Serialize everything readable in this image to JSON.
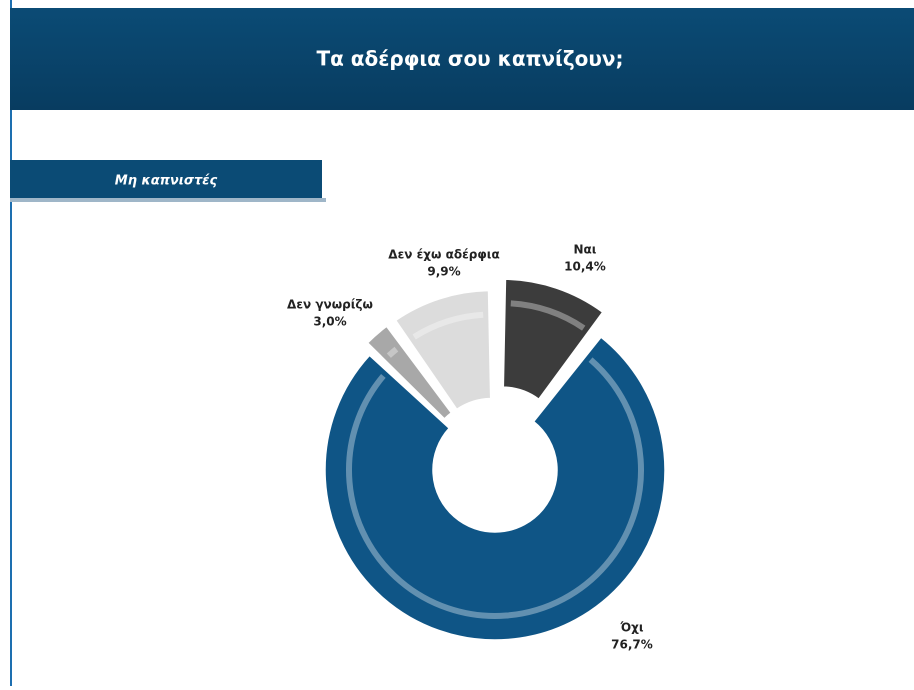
{
  "chart_data": {
    "type": "pie",
    "title": "Τα αδέρφια σου καπνίζουν;",
    "subtitle": "Μη καπνιστές",
    "categories": [
      "Ναι",
      "Όχι",
      "Δεν γνωρίζω",
      "Δεν έχω αδέρφια"
    ],
    "values": [
      10.4,
      76.7,
      3.0,
      9.9
    ],
    "value_labels": [
      "10,4%",
      "76,7%",
      "3,0%",
      "9,9%"
    ],
    "colors": [
      "#3c3c3c",
      "#0f5586",
      "#a8a8a8",
      "#dcdcdc"
    ],
    "donut": true
  }
}
